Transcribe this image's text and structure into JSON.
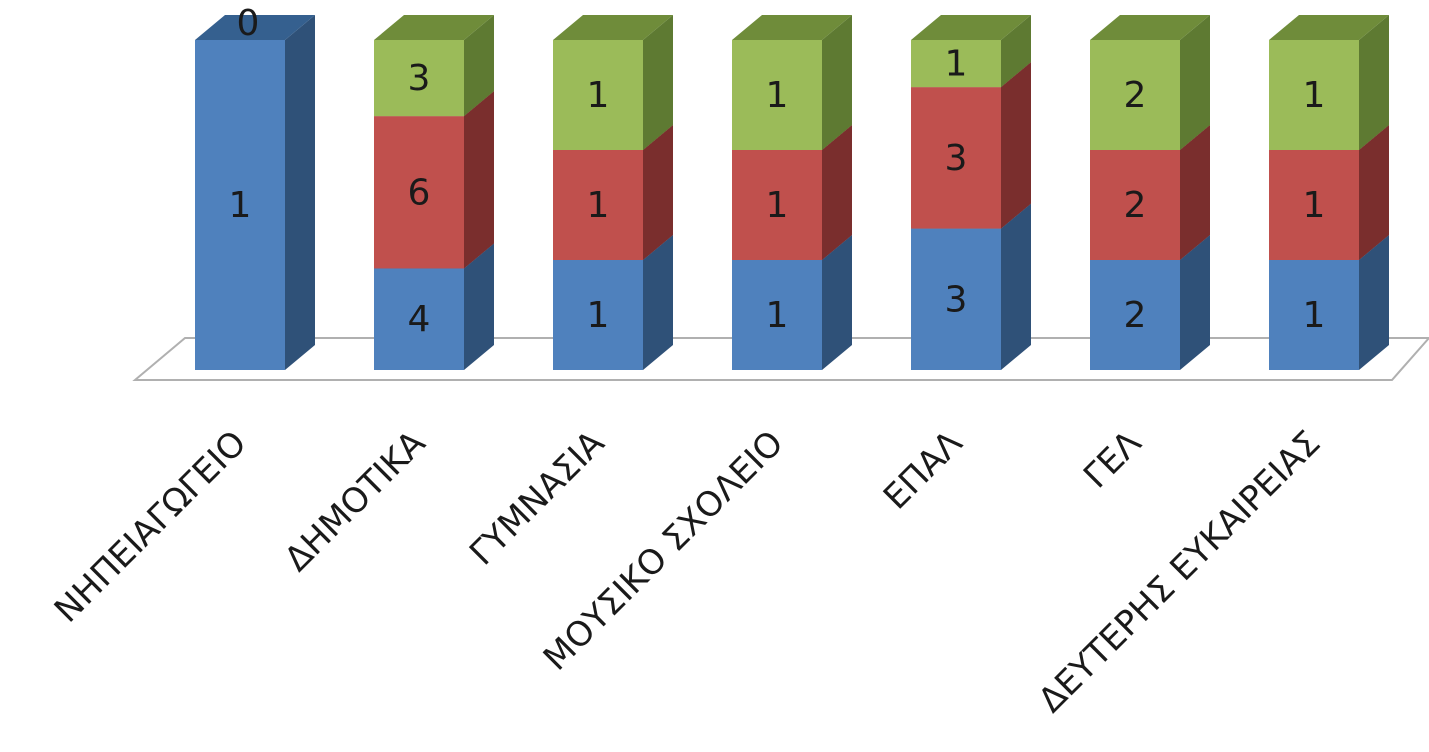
{
  "chart_data": {
    "type": "bar",
    "stacked": true,
    "three_d": true,
    "normalized_percent": true,
    "categories": [
      "ΝΗΠΕΙΑΓΩΓΕΙΟ",
      "ΔΗΜΟΤΙΚΑ",
      "ΓΥΜΝΑΣΙΑ",
      "ΜΟΥΣΙΚΟ ΣΧΟΛΕΙΟ",
      "ΕΠΑΛ",
      "ΓΕΛ",
      "ΔΕΥΤΕΡΗΣ ΕΥΚΑΙΡΕΙΑΣ"
    ],
    "series": [
      {
        "values": [
          1,
          4,
          1,
          1,
          3,
          2,
          1
        ],
        "color": "#4f81bd",
        "side": "#2f5178",
        "top": "#35608f"
      },
      {
        "values": [
          0,
          6,
          1,
          1,
          3,
          2,
          1
        ],
        "color": "#c0504d",
        "side": "#7a2e2d",
        "top": "#8c3836"
      },
      {
        "values": [
          0,
          3,
          1,
          1,
          1,
          2,
          1
        ],
        "color": "#9bbb59",
        "side": "#5e7a32",
        "top": "#6f8c3a"
      }
    ],
    "data_labels": [
      [
        "1",
        "0"
      ],
      [
        "4",
        "6",
        "3"
      ],
      [
        "1",
        "1",
        "1"
      ],
      [
        "1",
        "1",
        "1"
      ],
      [
        "3",
        "3",
        "1"
      ],
      [
        "2",
        "2",
        "2"
      ],
      [
        "1",
        "1",
        "1"
      ]
    ],
    "title": "",
    "xlabel": "",
    "ylabel": "",
    "legend": "none",
    "grid": false
  }
}
